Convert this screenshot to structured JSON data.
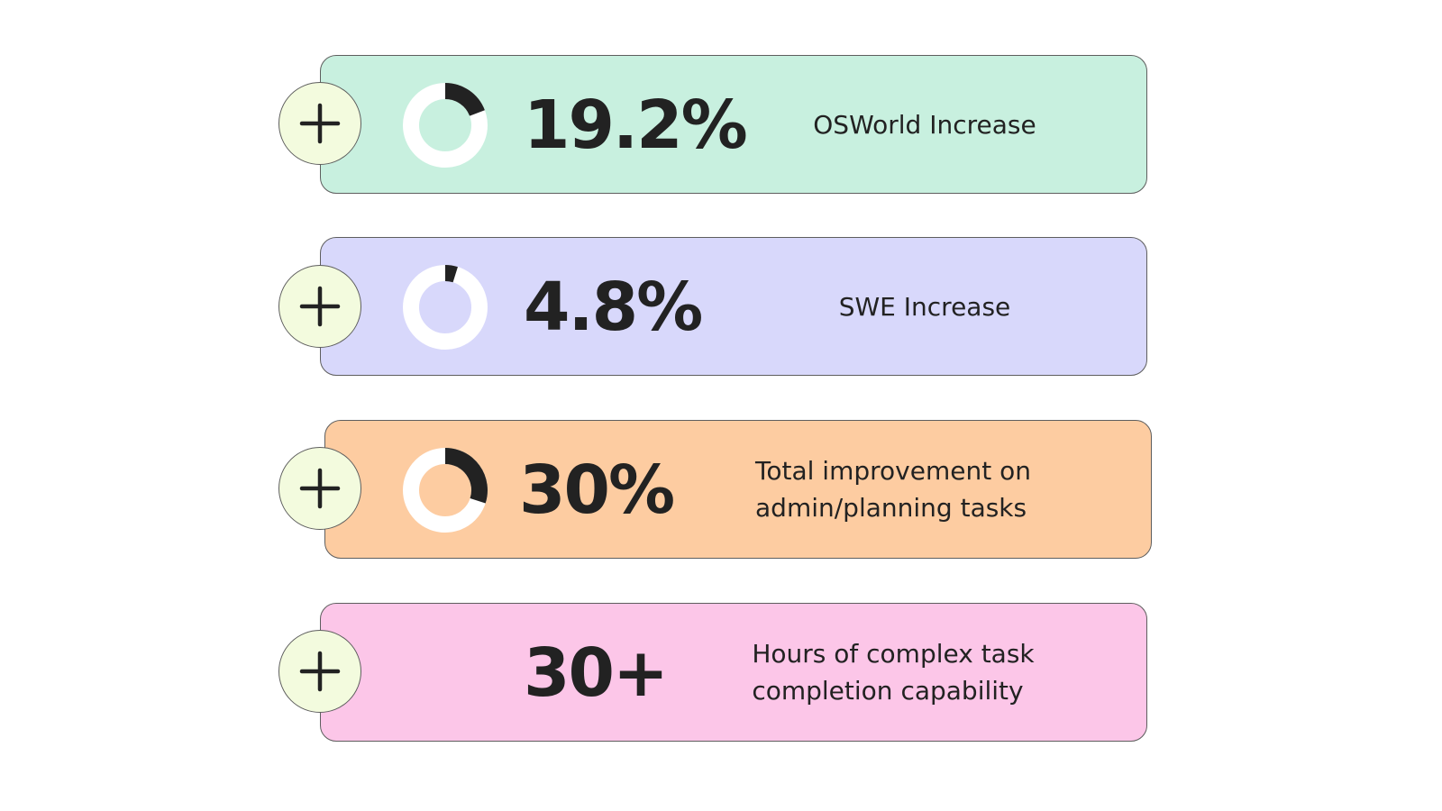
{
  "stats": [
    {
      "value": "19.2%",
      "label_lines": [
        "OSWorld Increase"
      ],
      "fill_fraction": 0.192,
      "card_color": "#c8f0df",
      "ring_color": "#ffffff",
      "arc_color": "#222222",
      "icon": "plus-icon",
      "show_donut": true
    },
    {
      "value": "4.8%",
      "label_lines": [
        "SWE Increase"
      ],
      "fill_fraction": 0.048,
      "card_color": "#d8d8fb",
      "ring_color": "#ffffff",
      "arc_color": "#222222",
      "icon": "plus-icon",
      "show_donut": true
    },
    {
      "value": "30%",
      "label_lines": [
        "Total improvement on",
        "admin/planning tasks"
      ],
      "fill_fraction": 0.3,
      "card_color": "#fdcca1",
      "ring_color": "#ffffff",
      "arc_color": "#222222",
      "icon": "plus-icon",
      "show_donut": true
    },
    {
      "value": "30+",
      "label_lines": [
        "Hours of complex task",
        "completion capability"
      ],
      "card_color": "#fcc6e8",
      "icon": "plus-icon",
      "show_donut": false
    }
  ],
  "plus_button_color": "#f3fbde"
}
